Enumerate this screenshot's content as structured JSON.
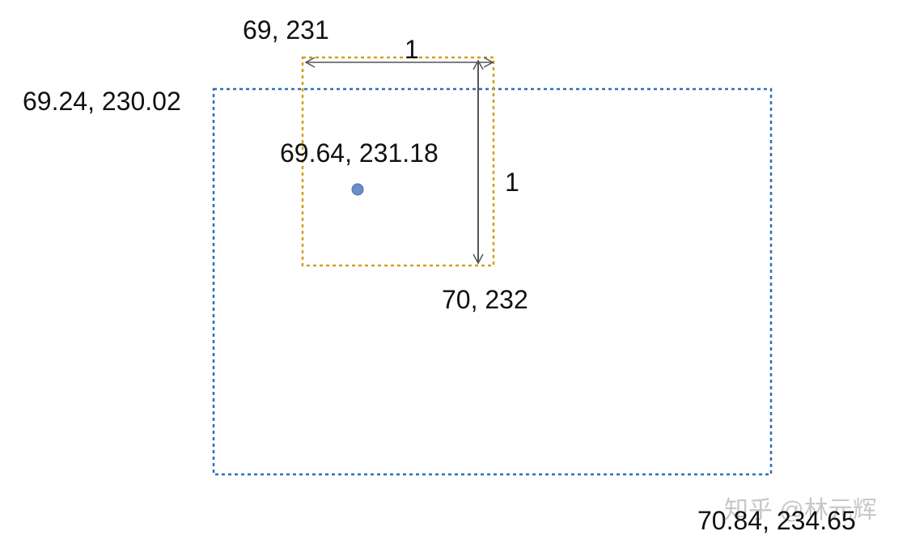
{
  "diagram": {
    "outer_box": {
      "top_left_label": "69.24, 230.02",
      "bottom_right_label": "70.84, 234.65",
      "border_color": "#2f6fb3"
    },
    "pixel_box": {
      "top_left_label": "69, 231",
      "bottom_right_label": "70, 232",
      "width_label": "1",
      "height_label": "1",
      "border_color": "#d4a017"
    },
    "center_point": {
      "label": "69.64, 231.18",
      "color": "#6b8ec9"
    },
    "arrow_color": "#555555"
  },
  "watermark": {
    "text": "知乎 @林元辉"
  }
}
